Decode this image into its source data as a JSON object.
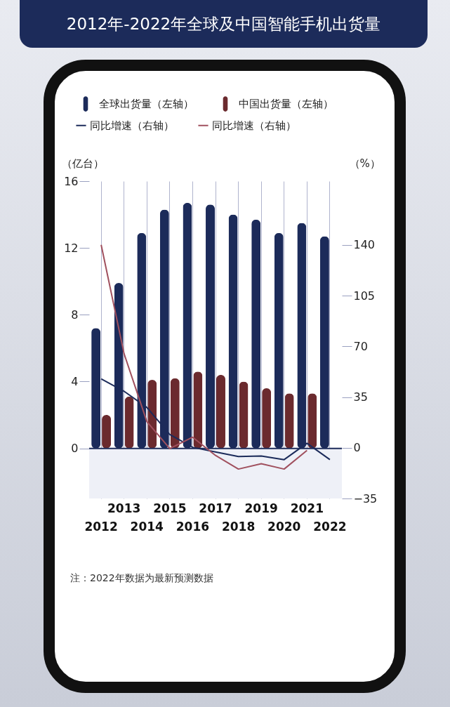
{
  "chart_data": {
    "type": "bar",
    "title": "2012年-2022年全球及中国智能手机出货量",
    "categories": [
      "2012",
      "2013",
      "2014",
      "2015",
      "2016",
      "2017",
      "2018",
      "2019",
      "2020",
      "2021",
      "2022"
    ],
    "series": [
      {
        "name": "全球出货量（左轴）",
        "type": "bar",
        "color": "#1c2b5a",
        "values": [
          7.2,
          9.9,
          12.9,
          14.3,
          14.7,
          14.6,
          14.0,
          13.7,
          12.9,
          13.5,
          12.7
        ]
      },
      {
        "name": "中国出货量（左轴）",
        "type": "bar",
        "color": "#6b2a2e",
        "values": [
          2.0,
          3.1,
          4.1,
          4.2,
          4.6,
          4.4,
          4.0,
          3.6,
          3.3,
          3.3,
          null
        ]
      },
      {
        "name": "同比增速（右轴）",
        "type": "line",
        "axis": "y2",
        "color": "#1c2b5a",
        "values": [
          47.5,
          39,
          27.8,
          9.2,
          0.3,
          -2.9,
          -6.1,
          -5.7,
          -8.2,
          3.1,
          -8.2
        ]
      },
      {
        "name": "同比增速（右轴）",
        "type": "line",
        "axis": "y2",
        "color": "#a0505e",
        "values": [
          140,
          65,
          18,
          -0.5,
          7.3,
          -5.3,
          -14.7,
          -11,
          -14.7,
          -1.8,
          null
        ]
      }
    ],
    "ylabel": "（亿台）",
    "y2label": "（%）",
    "ylim": [
      -3,
      16
    ],
    "yticks": [
      0,
      4,
      8,
      12,
      16
    ],
    "y2lim": [
      -35,
      184
    ],
    "y2ticks": [
      -35,
      0,
      35,
      70,
      105,
      140
    ],
    "grid": "x",
    "legend": "top",
    "bands": [
      {
        "axis": "y2",
        "from": -35,
        "to": 0,
        "color": "#eef0f7"
      }
    ],
    "ref_lines": [
      {
        "axis": "y",
        "value": 0,
        "color": "#1c2b5a"
      }
    ],
    "annotations": [
      "注：2022年数据为最新预测数据"
    ]
  }
}
